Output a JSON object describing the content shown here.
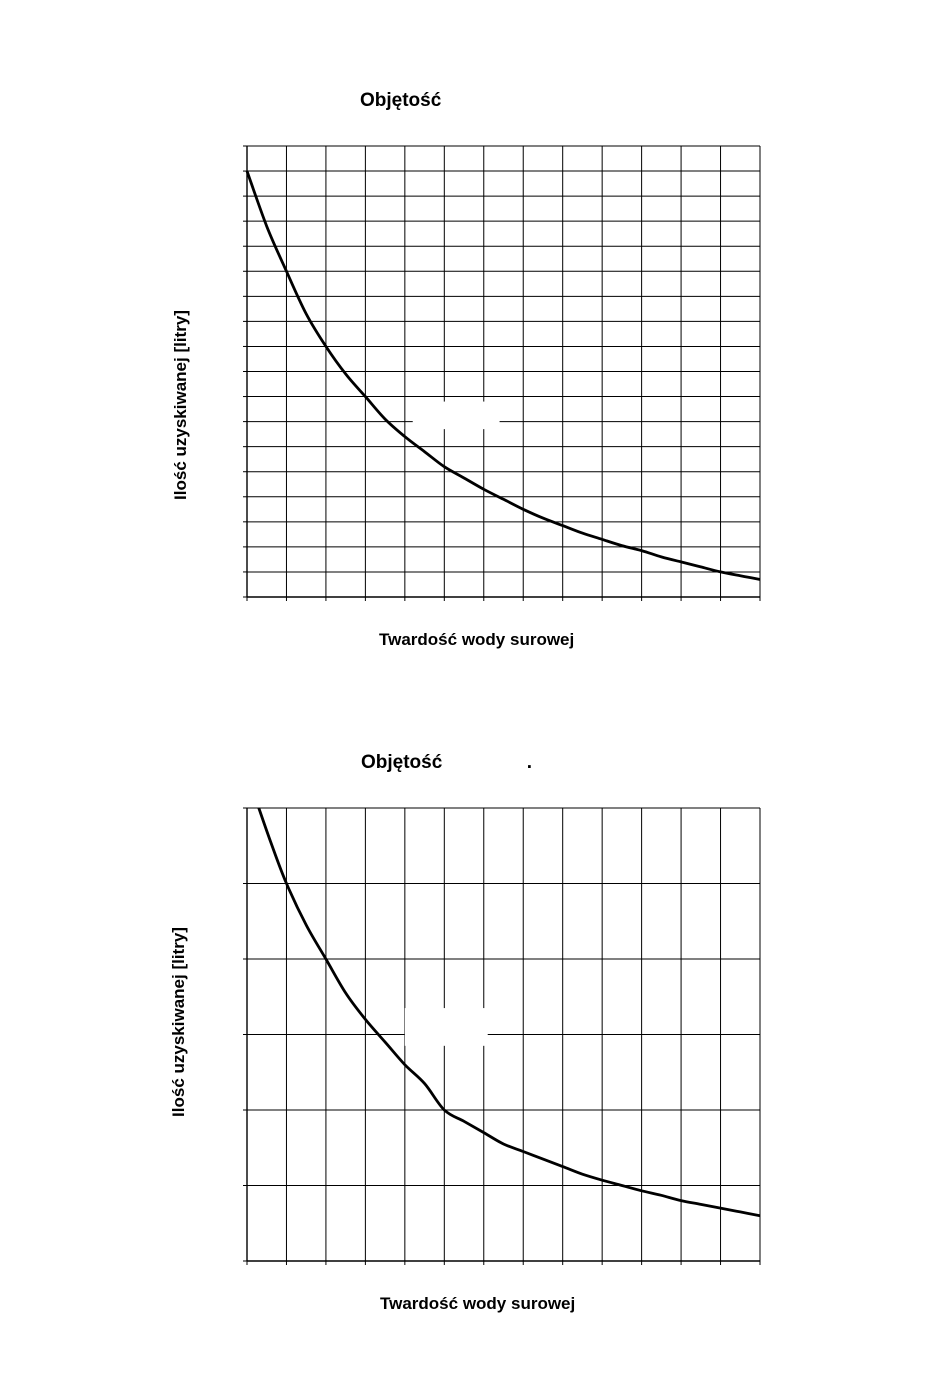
{
  "chart_data": [
    {
      "type": "line",
      "title": "Objętość",
      "xlabel": "Twardość wody surowej",
      "ylabel": "Ilość uzyskiwanej [litry]",
      "grid": true,
      "x_divisions": 13,
      "y_divisions": 18,
      "xlim": [
        0,
        13
      ],
      "ylim": [
        0,
        18
      ],
      "series": [
        {
          "x": [
            0,
            0.5,
            1,
            1.5,
            2,
            2.5,
            3,
            3.5,
            4,
            4.5,
            5,
            5.5,
            6,
            6.5,
            7,
            7.5,
            8,
            8.5,
            9,
            9.5,
            10,
            10.5,
            11,
            11.5,
            12,
            12.5,
            13
          ],
          "values": [
            17,
            14.8,
            13,
            11.3,
            10,
            8.9,
            8,
            7.1,
            6.4,
            5.8,
            5.2,
            4.75,
            4.3,
            3.9,
            3.5,
            3.15,
            2.85,
            2.55,
            2.3,
            2.05,
            1.85,
            1.6,
            1.4,
            1.2,
            1.0,
            0.85,
            0.7
          ]
        }
      ]
    },
    {
      "type": "line",
      "title": "Objętość                .",
      "xlabel": "Twardość wody surowej",
      "ylabel": "Ilość uzyskiwanej [litry]",
      "grid": true,
      "x_divisions": 13,
      "y_divisions": 6,
      "xlim": [
        0,
        13
      ],
      "ylim": [
        0,
        6
      ],
      "series": [
        {
          "x": [
            0.3,
            0.6,
            1,
            1.5,
            2,
            2.5,
            3,
            3.5,
            4,
            4.5,
            5,
            5.5,
            6,
            6.5,
            7,
            7.5,
            8,
            8.5,
            9,
            9.5,
            10,
            10.5,
            11,
            11.5,
            12,
            12.5,
            13
          ],
          "values": [
            6.0,
            5.55,
            5.0,
            4.45,
            4.0,
            3.55,
            3.2,
            2.9,
            2.6,
            2.35,
            2.0,
            1.85,
            1.7,
            1.55,
            1.45,
            1.35,
            1.25,
            1.15,
            1.07,
            1.0,
            0.93,
            0.87,
            0.8,
            0.75,
            0.7,
            0.65,
            0.6
          ]
        }
      ]
    }
  ]
}
